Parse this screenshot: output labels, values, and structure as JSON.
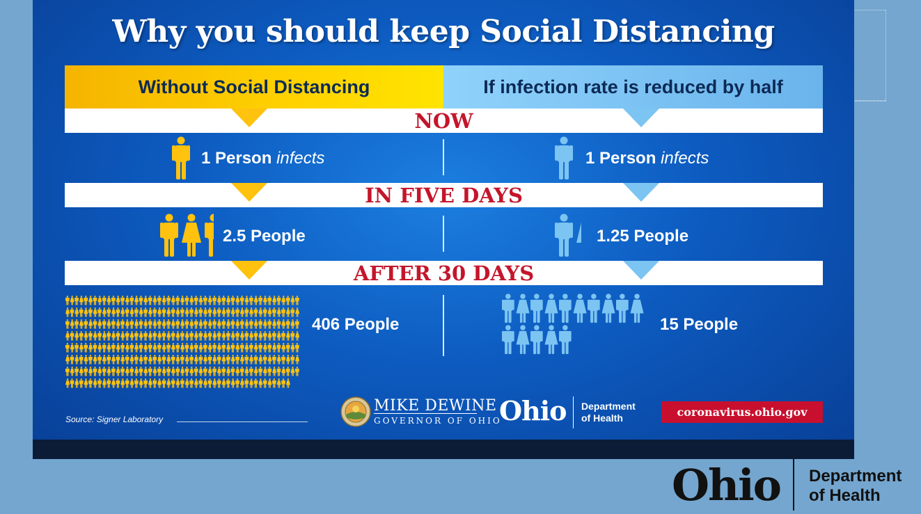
{
  "title": "Why you should keep Social Distancing",
  "headers": {
    "left": "Without Social Distancing",
    "right": "If infection rate is reduced by half"
  },
  "stages": [
    {
      "label": "NOW",
      "left": {
        "count": "1 Person",
        "suffix": "infects",
        "people": 1
      },
      "right": {
        "count": "1 Person",
        "suffix": "infects",
        "people": 1
      }
    },
    {
      "label": "IN FIVE DAYS",
      "left": {
        "text": "2.5 People",
        "people": 2.5
      },
      "right": {
        "text": "1.25 People",
        "people": 1.25
      }
    },
    {
      "label": "AFTER 30 DAYS",
      "left": {
        "text": "406 People",
        "people": 406
      },
      "right": {
        "text": "15 People",
        "people": 15
      }
    }
  ],
  "footer": {
    "source": "Source: Signer Laboratory",
    "governor_name": "MIKE DEWINE",
    "governor_title": "GOVERNOR OF OHIO",
    "ohio_logo": "Ohio",
    "department_line1": "Department",
    "department_line2": "of Health",
    "url": "coronavirus.ohio.gov"
  },
  "corner_logo": {
    "ohio": "Ohio",
    "line1": "Department",
    "line2": "of Health"
  },
  "colors": {
    "yellow": "#ffc20e",
    "light_blue": "#7cc4f2",
    "red": "#c4162b",
    "navy": "#0b2a55"
  },
  "icons": [
    "person-icon",
    "ohio-seal-icon"
  ]
}
